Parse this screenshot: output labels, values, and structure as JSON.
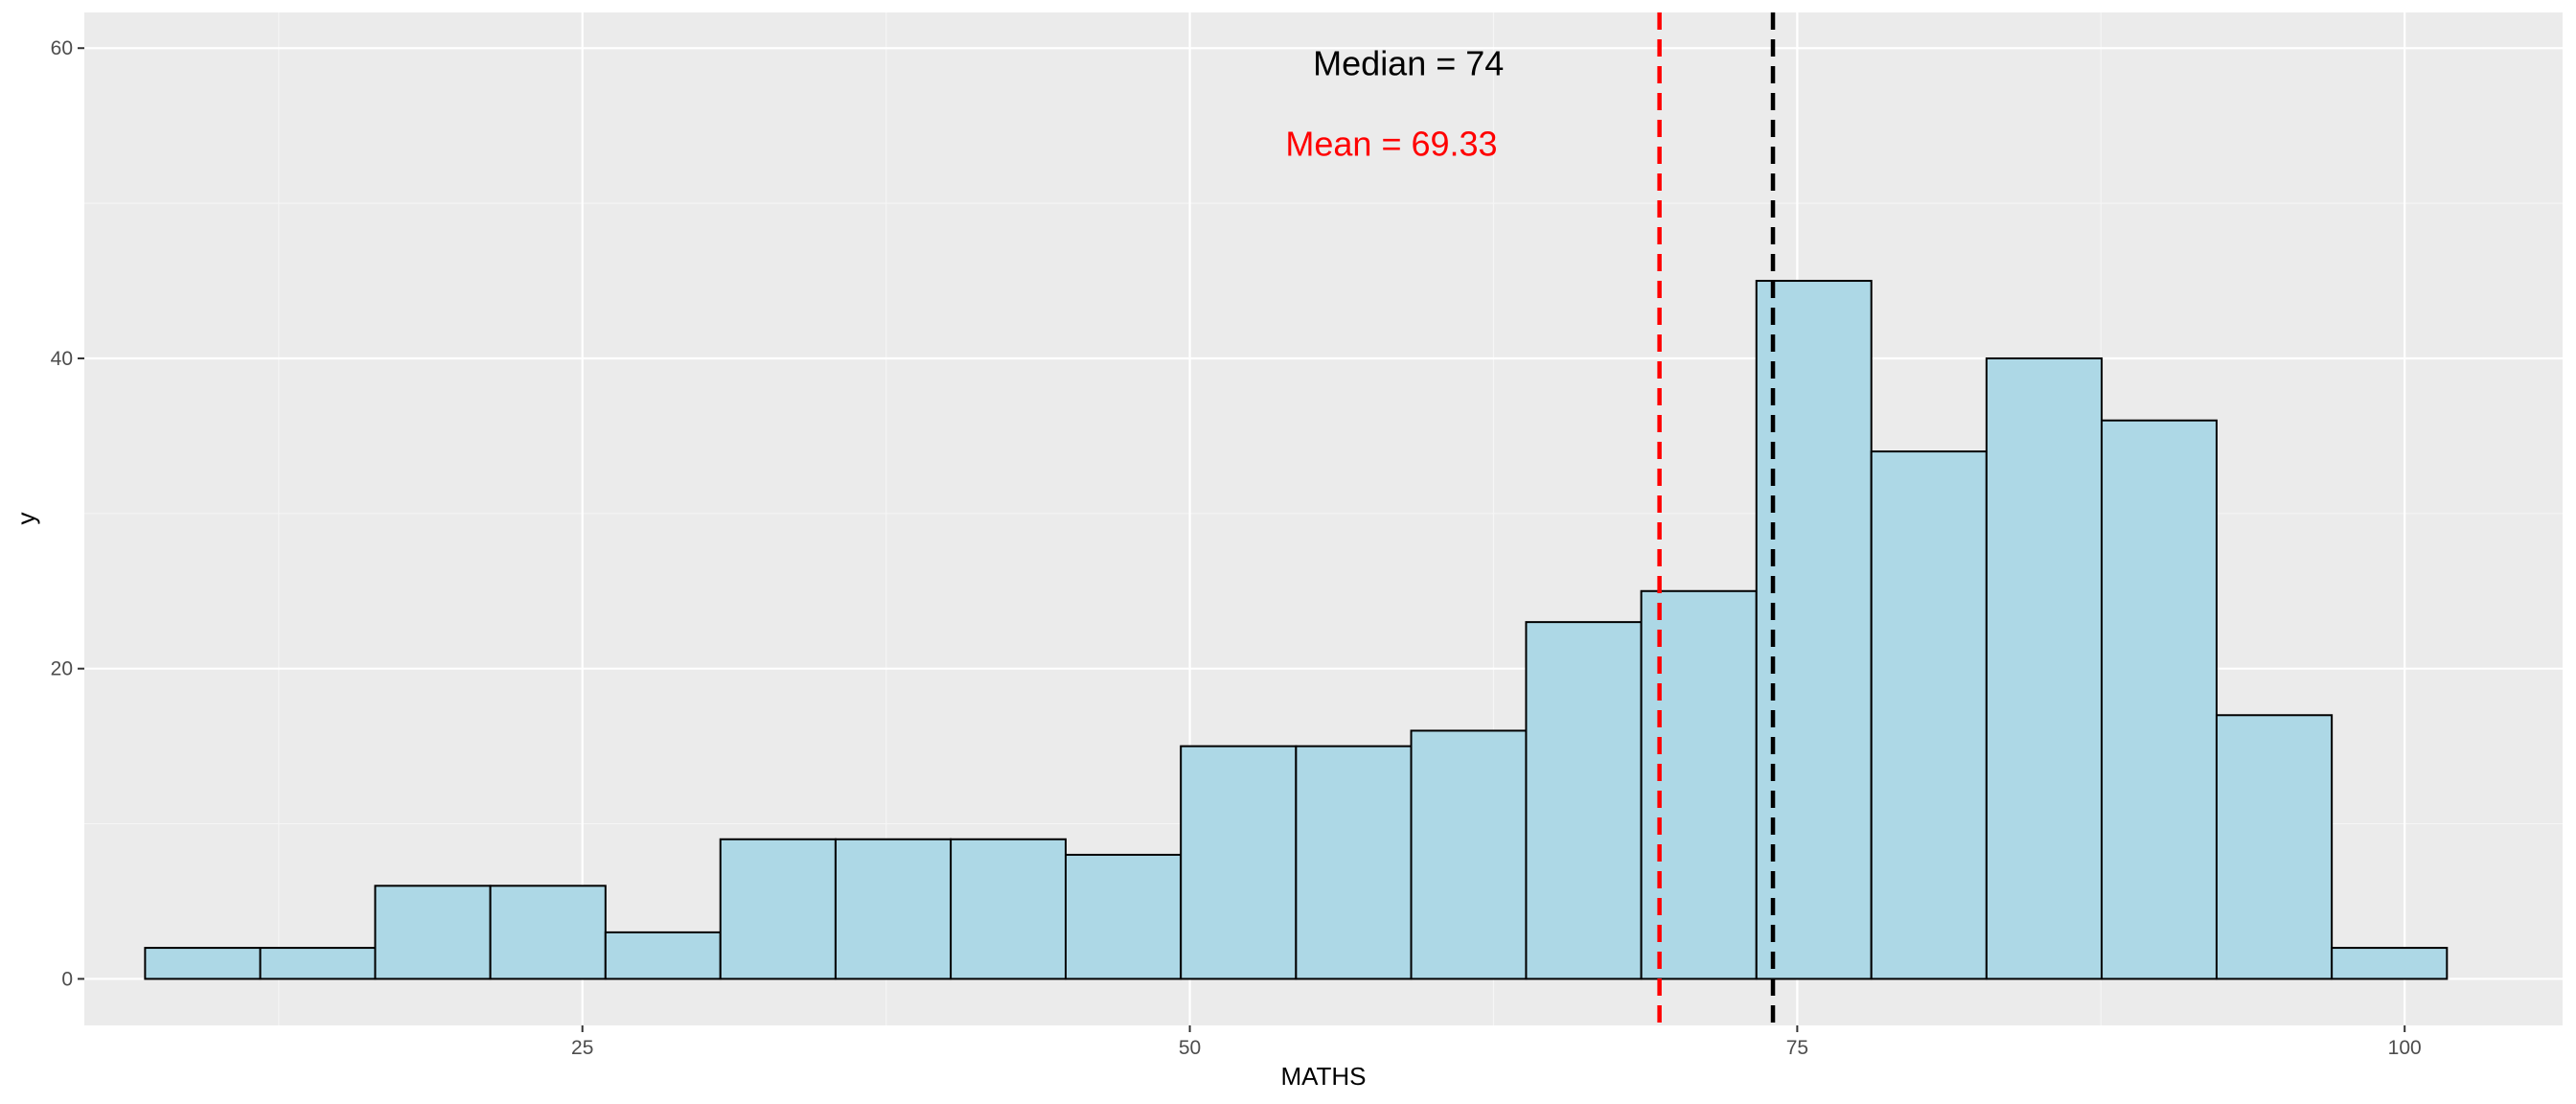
{
  "chart_data": {
    "type": "bar",
    "subtype": "histogram",
    "xlabel": "MATHS",
    "ylabel": "y",
    "xlim": [
      4.5,
      106.5
    ],
    "ylim": [
      -3,
      62.3
    ],
    "x_ticks": [
      25,
      50,
      75,
      100
    ],
    "x_tick_labels": [
      "25",
      "50",
      "75",
      "100"
    ],
    "y_ticks": [
      0,
      20,
      40,
      60
    ],
    "y_tick_labels": [
      "0",
      "20",
      "40",
      "60"
    ],
    "grid": true,
    "bin_width": 4.737,
    "bins": [
      {
        "x0": 7.0,
        "x1": 11.74,
        "count": 2
      },
      {
        "x0": 11.74,
        "x1": 16.47,
        "count": 2
      },
      {
        "x0": 16.47,
        "x1": 21.21,
        "count": 6
      },
      {
        "x0": 21.21,
        "x1": 25.95,
        "count": 6
      },
      {
        "x0": 25.95,
        "x1": 30.68,
        "count": 3
      },
      {
        "x0": 30.68,
        "x1": 35.42,
        "count": 9
      },
      {
        "x0": 35.42,
        "x1": 40.16,
        "count": 9
      },
      {
        "x0": 40.16,
        "x1": 44.89,
        "count": 9
      },
      {
        "x0": 44.89,
        "x1": 49.63,
        "count": 8
      },
      {
        "x0": 49.63,
        "x1": 54.37,
        "count": 15
      },
      {
        "x0": 54.37,
        "x1": 59.11,
        "count": 15
      },
      {
        "x0": 59.11,
        "x1": 63.84,
        "count": 16
      },
      {
        "x0": 63.84,
        "x1": 68.58,
        "count": 23
      },
      {
        "x0": 68.58,
        "x1": 73.32,
        "count": 25
      },
      {
        "x0": 73.32,
        "x1": 78.05,
        "count": 45
      },
      {
        "x0": 78.05,
        "x1": 82.79,
        "count": 34
      },
      {
        "x0": 82.79,
        "x1": 87.53,
        "count": 40
      },
      {
        "x0": 87.53,
        "x1": 92.26,
        "count": 36
      },
      {
        "x0": 92.26,
        "x1": 97.0,
        "count": 17
      },
      {
        "x0": 97.0,
        "x1": 101.74,
        "count": 2
      }
    ],
    "reference_lines": [
      {
        "name": "mean",
        "value": 69.33,
        "color": "#ff0000",
        "style": "dashed"
      },
      {
        "name": "median",
        "value": 74,
        "color": "#000000",
        "style": "dashed"
      }
    ],
    "annotations": [
      {
        "name": "median",
        "text": "Median = 74",
        "x": 59,
        "y": 59,
        "color": "#000000"
      },
      {
        "name": "mean",
        "text": "Mean = 69.33",
        "x": 58.3,
        "y": 53.8,
        "color": "#ff0000"
      }
    ],
    "colors": {
      "bar_fill": "#add8e6",
      "bar_stroke": "#000000",
      "panel_background": "#ebebeb",
      "grid_major": "#ffffff",
      "grid_minor": "#f5f5f5"
    }
  }
}
